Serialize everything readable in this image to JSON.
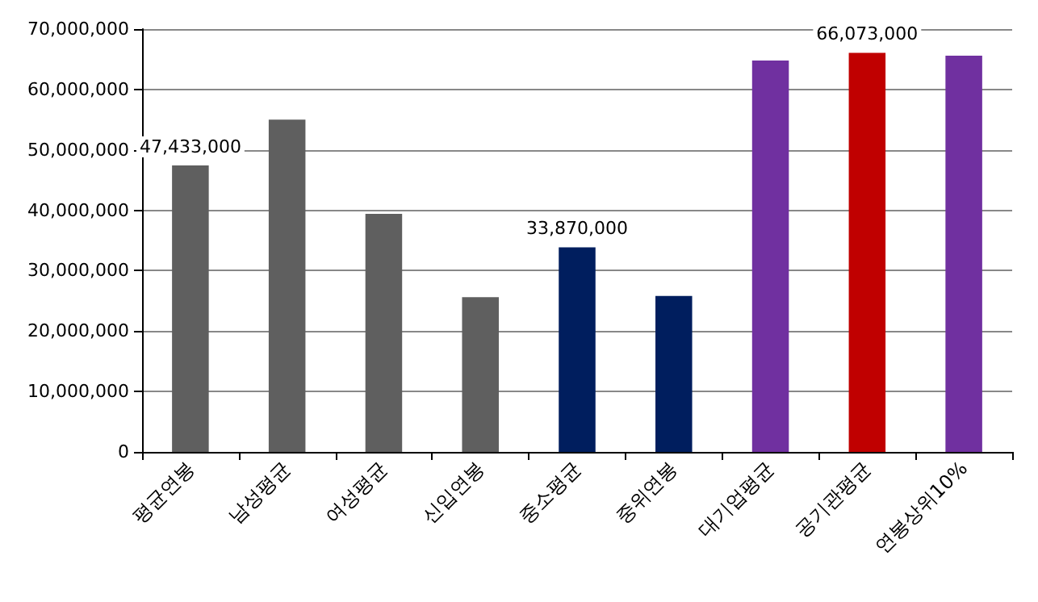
{
  "chart_data": {
    "type": "bar",
    "categories": [
      "평균연봉",
      "남성평균",
      "여성평균",
      "신입연봉",
      "중소평균",
      "중위연봉",
      "대기업평균",
      "공기관평균",
      "연봉상위10%"
    ],
    "values": [
      47433000,
      55000000,
      39400000,
      25600000,
      33870000,
      25800000,
      64800000,
      66073000,
      65600000
    ],
    "colors": [
      "#5f5f5f",
      "#5f5f5f",
      "#5f5f5f",
      "#5f5f5f",
      "#001e5e",
      "#001e5e",
      "#7030a0",
      "#c00000",
      "#7030a0"
    ],
    "value_labels": [
      "47,433,000",
      null,
      null,
      null,
      "33,870,000",
      null,
      null,
      "66,073,000",
      null
    ],
    "ylim": [
      0,
      70000000
    ],
    "yticks": [
      0,
      {
        "value": 10000000,
        "label": "10,000,000"
      },
      {
        "value": 20000000,
        "label": "20,000,000"
      },
      {
        "value": 30000000,
        "label": "30,000,000"
      },
      {
        "value": 40000000,
        "label": "40,000,000"
      },
      {
        "value": 50000000,
        "label": "50,000,000"
      },
      {
        "value": 60000000,
        "label": "60,000,000"
      },
      {
        "value": 70000000,
        "label": "70,000,000"
      }
    ],
    "grid": "y"
  }
}
